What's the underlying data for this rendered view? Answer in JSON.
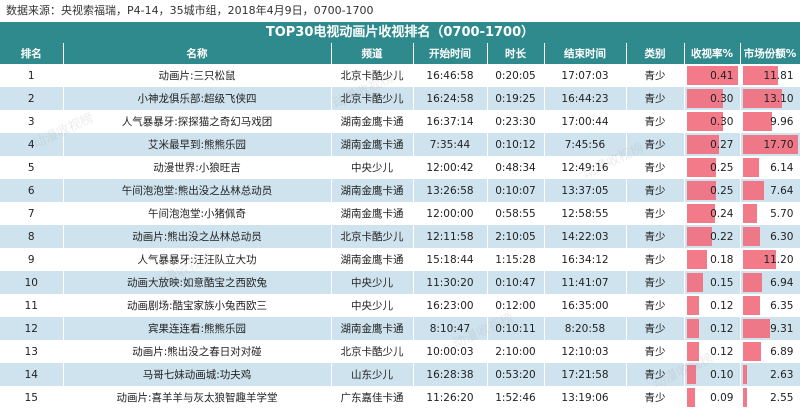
{
  "source": "数据来源：央视索福瑞，P4-14，35城市组，2018年4月9日，0700-1700",
  "title": "TOP30电视动画片收视排名（0700-1700）",
  "headers": [
    "排名",
    "名称",
    "频道",
    "开始时间",
    "时长",
    "结束时间",
    "类别",
    "收视率%",
    "市场份额%"
  ],
  "rows": [
    {
      "rank": "1",
      "name": "动画片:三只松鼠",
      "channel": "北京卡酷少儿",
      "start": "16:46:58",
      "duration": "0:20:05",
      "end": "17:07:03",
      "category": "青少",
      "rating": "0.41",
      "share": "11.81"
    },
    {
      "rank": "2",
      "name": "小神龙俱乐部:超级飞侠四",
      "channel": "北京卡酷少儿",
      "start": "16:24:58",
      "duration": "0:19:25",
      "end": "16:44:23",
      "category": "青少",
      "rating": "0.30",
      "share": "13.10"
    },
    {
      "rank": "3",
      "name": "人气暴暴牙:探探猫之奇幻马戏团",
      "channel": "湖南金鹰卡通",
      "start": "16:37:14",
      "duration": "0:23:30",
      "end": "17:00:44",
      "category": "青少",
      "rating": "0.30",
      "share": "9.96"
    },
    {
      "rank": "4",
      "name": "艾米最早到:熊熊乐园",
      "channel": "湖南金鹰卡通",
      "start": "7:35:44",
      "duration": "0:10:12",
      "end": "7:45:56",
      "category": "青少",
      "rating": "0.27",
      "share": "17.70"
    },
    {
      "rank": "5",
      "name": "动漫世界:小狼旺吉",
      "channel": "中央少儿",
      "start": "12:00:42",
      "duration": "0:48:34",
      "end": "12:49:16",
      "category": "青少",
      "rating": "0.25",
      "share": "6.14"
    },
    {
      "rank": "6",
      "name": "午间泡泡堂:熊出没之丛林总动员",
      "channel": "湖南金鹰卡通",
      "start": "13:26:58",
      "duration": "0:10:07",
      "end": "13:37:05",
      "category": "青少",
      "rating": "0.25",
      "share": "7.64"
    },
    {
      "rank": "7",
      "name": "午间泡泡堂:小猪佩奇",
      "channel": "湖南金鹰卡通",
      "start": "12:00:00",
      "duration": "0:58:55",
      "end": "12:58:55",
      "category": "青少",
      "rating": "0.24",
      "share": "5.70"
    },
    {
      "rank": "8",
      "name": "动画片:熊出没之丛林总动员",
      "channel": "北京卡酷少儿",
      "start": "12:11:58",
      "duration": "2:10:05",
      "end": "14:22:03",
      "category": "青少",
      "rating": "0.22",
      "share": "6.30"
    },
    {
      "rank": "9",
      "name": "人气暴暴牙:汪汪队立大功",
      "channel": "湖南金鹰卡通",
      "start": "15:18:44",
      "duration": "1:15:28",
      "end": "16:34:12",
      "category": "青少",
      "rating": "0.18",
      "share": "11.20"
    },
    {
      "rank": "10",
      "name": "动画大放映:如意酷宝之西欧兔",
      "channel": "中央少儿",
      "start": "11:30:20",
      "duration": "0:10:47",
      "end": "11:41:07",
      "category": "青少",
      "rating": "0.15",
      "share": "6.94"
    },
    {
      "rank": "11",
      "name": "动画剧场:酷宝家族小兔西欧三",
      "channel": "中央少儿",
      "start": "16:23:00",
      "duration": "0:12:00",
      "end": "16:35:00",
      "category": "青少",
      "rating": "0.12",
      "share": "6.35"
    },
    {
      "rank": "12",
      "name": "宾果连连看:熊熊乐园",
      "channel": "湖南金鹰卡通",
      "start": "8:10:47",
      "duration": "0:10:11",
      "end": "8:20:58",
      "category": "青少",
      "rating": "0.12",
      "share": "9.31"
    },
    {
      "rank": "13",
      "name": "动画片:熊出没之春日对对碰",
      "channel": "北京卡酷少儿",
      "start": "10:00:03",
      "duration": "2:10:00",
      "end": "12:10:03",
      "category": "青少",
      "rating": "0.12",
      "share": "6.89"
    },
    {
      "rank": "14",
      "name": "马哥七妹动画城:功夫鸡",
      "channel": "山东少儿",
      "start": "16:28:38",
      "duration": "0:53:20",
      "end": "17:21:58",
      "category": "青少",
      "rating": "0.10",
      "share": "2.63"
    },
    {
      "rank": "15",
      "name": "动画片:喜羊羊与灰太狼智趣羊学堂",
      "channel": "广东嘉佳卡通",
      "start": "11:26:20",
      "duration": "1:52:46",
      "end": "13:19:06",
      "category": "青少",
      "rating": "0.09",
      "share": "2.55"
    }
  ],
  "colors": {
    "header": "#2f8a8d",
    "row_alt": "#cfe3ee",
    "bar": "#f26b7c"
  }
}
